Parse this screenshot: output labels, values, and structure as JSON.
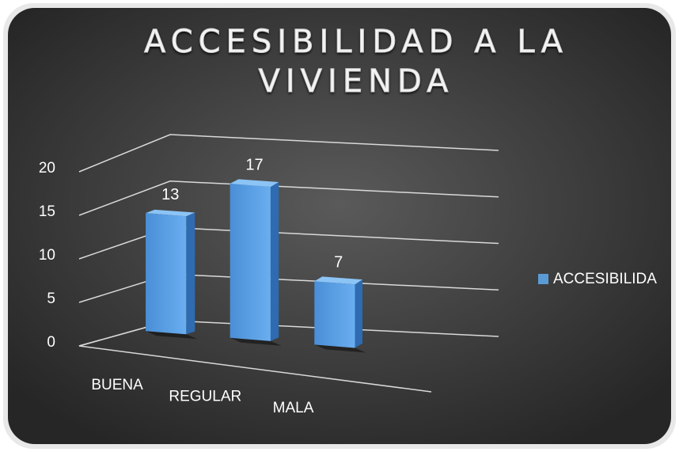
{
  "chart_data": {
    "type": "bar3d",
    "title": "ACCESIBILIDAD A LA VIVIENDA",
    "categories": [
      "BUENA",
      "REGULAR",
      "MALA"
    ],
    "series": [
      {
        "name": "ACCESIBILIDA",
        "color": "#5b9bd5",
        "values": [
          13,
          17,
          7
        ]
      }
    ],
    "ylim": [
      0,
      20
    ],
    "yticks": [
      0,
      5,
      10,
      15,
      20
    ],
    "grid": true,
    "legend": "right"
  }
}
